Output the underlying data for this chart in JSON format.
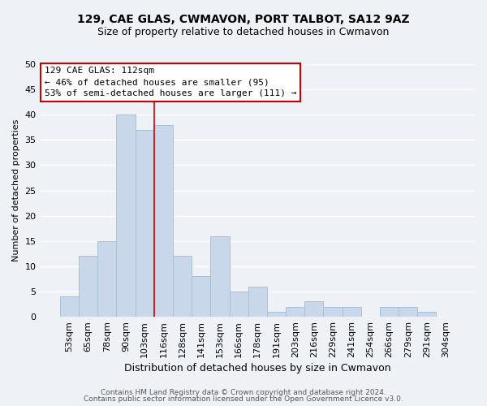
{
  "title": "129, CAE GLAS, CWMAVON, PORT TALBOT, SA12 9AZ",
  "subtitle": "Size of property relative to detached houses in Cwmavon",
  "xlabel": "Distribution of detached houses by size in Cwmavon",
  "ylabel": "Number of detached properties",
  "bar_labels": [
    "53sqm",
    "65sqm",
    "78sqm",
    "90sqm",
    "103sqm",
    "116sqm",
    "128sqm",
    "141sqm",
    "153sqm",
    "166sqm",
    "178sqm",
    "191sqm",
    "203sqm",
    "216sqm",
    "229sqm",
    "241sqm",
    "254sqm",
    "266sqm",
    "279sqm",
    "291sqm",
    "304sqm"
  ],
  "bar_values": [
    4,
    12,
    15,
    40,
    37,
    38,
    12,
    8,
    16,
    5,
    6,
    1,
    2,
    3,
    2,
    2,
    0,
    2,
    2,
    1,
    0
  ],
  "bar_color": "#c8d8ea",
  "bar_edge_color": "#a8c0d4",
  "vline_x_index": 5,
  "vline_color": "#cc0000",
  "ylim": [
    0,
    50
  ],
  "yticks": [
    0,
    5,
    10,
    15,
    20,
    25,
    30,
    35,
    40,
    45,
    50
  ],
  "annotation_title": "129 CAE GLAS: 112sqm",
  "annotation_line1": "← 46% of detached houses are smaller (95)",
  "annotation_line2": "53% of semi-detached houses are larger (111) →",
  "annotation_box_color": "#ffffff",
  "annotation_box_edge": "#cc0000",
  "footer1": "Contains HM Land Registry data © Crown copyright and database right 2024.",
  "footer2": "Contains public sector information licensed under the Open Government Licence v3.0.",
  "background_color": "#eef2f7",
  "grid_color": "#ffffff",
  "title_fontsize": 10,
  "subtitle_fontsize": 9,
  "xlabel_fontsize": 9,
  "ylabel_fontsize": 8,
  "tick_fontsize": 8,
  "ann_fontsize": 8,
  "footer_fontsize": 6.5
}
